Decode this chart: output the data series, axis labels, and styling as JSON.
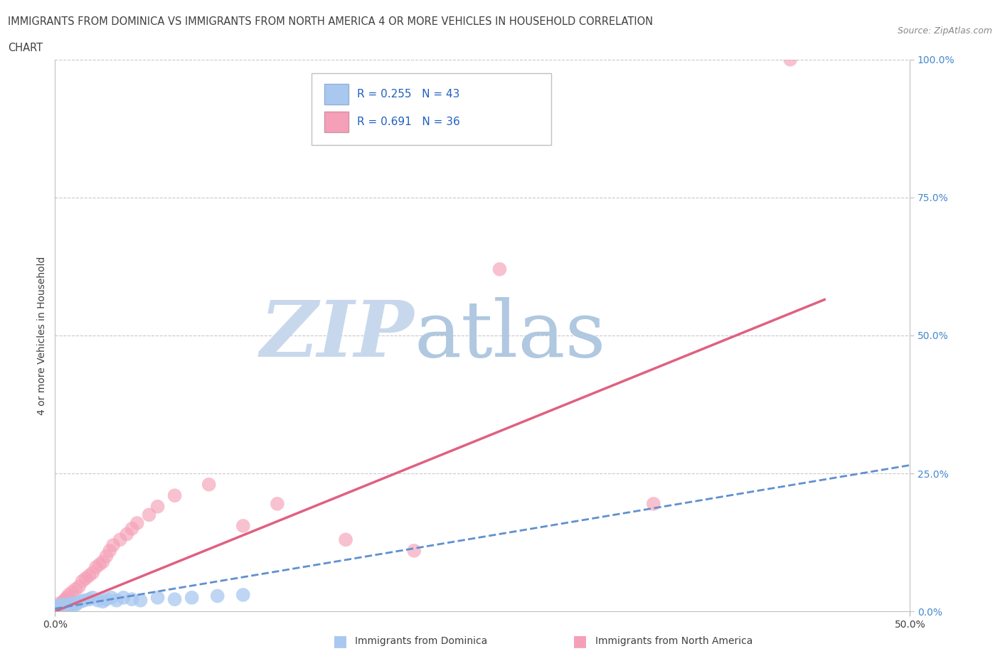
{
  "title_line1": "IMMIGRANTS FROM DOMINICA VS IMMIGRANTS FROM NORTH AMERICA 4 OR MORE VEHICLES IN HOUSEHOLD CORRELATION",
  "title_line2": "CHART",
  "source": "Source: ZipAtlas.com",
  "ylabel_label": "4 or more Vehicles in Household",
  "right_ytick_labels": [
    "100.0%",
    "75.0%",
    "50.0%",
    "25.0%",
    "0.0%"
  ],
  "right_ytick_positions": [
    1.0,
    0.75,
    0.5,
    0.25,
    0.0
  ],
  "xlim": [
    0.0,
    0.5
  ],
  "ylim": [
    0.0,
    1.0
  ],
  "blue_R": 0.255,
  "blue_N": 43,
  "pink_R": 0.691,
  "pink_N": 36,
  "blue_color": "#a8c8f0",
  "pink_color": "#f5a0b8",
  "blue_line_color": "#6090d0",
  "pink_line_color": "#e06080",
  "legend_R_color": "#2060c0",
  "watermark_zip_color": "#c8d8ec",
  "watermark_atlas_color": "#b0c8e0",
  "background_color": "#ffffff",
  "grid_color": "#c8c8d0",
  "title_color": "#404040",
  "blue_scatter_x": [
    0.001,
    0.001,
    0.002,
    0.002,
    0.002,
    0.003,
    0.003,
    0.003,
    0.003,
    0.004,
    0.004,
    0.004,
    0.005,
    0.005,
    0.005,
    0.006,
    0.006,
    0.007,
    0.007,
    0.008,
    0.008,
    0.009,
    0.01,
    0.01,
    0.012,
    0.013,
    0.015,
    0.017,
    0.02,
    0.022,
    0.025,
    0.028,
    0.03,
    0.033,
    0.036,
    0.04,
    0.045,
    0.05,
    0.06,
    0.07,
    0.08,
    0.095,
    0.11
  ],
  "blue_scatter_y": [
    0.005,
    0.008,
    0.005,
    0.007,
    0.01,
    0.003,
    0.005,
    0.008,
    0.01,
    0.005,
    0.008,
    0.012,
    0.005,
    0.008,
    0.01,
    0.005,
    0.012,
    0.008,
    0.01,
    0.008,
    0.012,
    0.01,
    0.01,
    0.015,
    0.012,
    0.015,
    0.018,
    0.02,
    0.022,
    0.025,
    0.02,
    0.018,
    0.022,
    0.025,
    0.02,
    0.025,
    0.022,
    0.02,
    0.025,
    0.022,
    0.025,
    0.028,
    0.03
  ],
  "pink_scatter_x": [
    0.001,
    0.002,
    0.003,
    0.004,
    0.005,
    0.006,
    0.007,
    0.008,
    0.01,
    0.012,
    0.014,
    0.016,
    0.018,
    0.02,
    0.022,
    0.024,
    0.026,
    0.028,
    0.03,
    0.032,
    0.034,
    0.038,
    0.042,
    0.045,
    0.048,
    0.055,
    0.06,
    0.07,
    0.09,
    0.11,
    0.13,
    0.17,
    0.21,
    0.26,
    0.35,
    0.43
  ],
  "pink_scatter_y": [
    0.005,
    0.01,
    0.015,
    0.012,
    0.018,
    0.022,
    0.025,
    0.03,
    0.035,
    0.04,
    0.045,
    0.055,
    0.06,
    0.065,
    0.07,
    0.08,
    0.085,
    0.09,
    0.1,
    0.11,
    0.12,
    0.13,
    0.14,
    0.15,
    0.16,
    0.175,
    0.19,
    0.21,
    0.23,
    0.155,
    0.195,
    0.13,
    0.11,
    0.62,
    0.195,
    1.0
  ],
  "pink_line_x": [
    0.0,
    0.45
  ],
  "pink_line_y": [
    0.0,
    0.565
  ],
  "blue_line_x": [
    0.0,
    0.5
  ],
  "blue_line_y": [
    0.005,
    0.265
  ]
}
